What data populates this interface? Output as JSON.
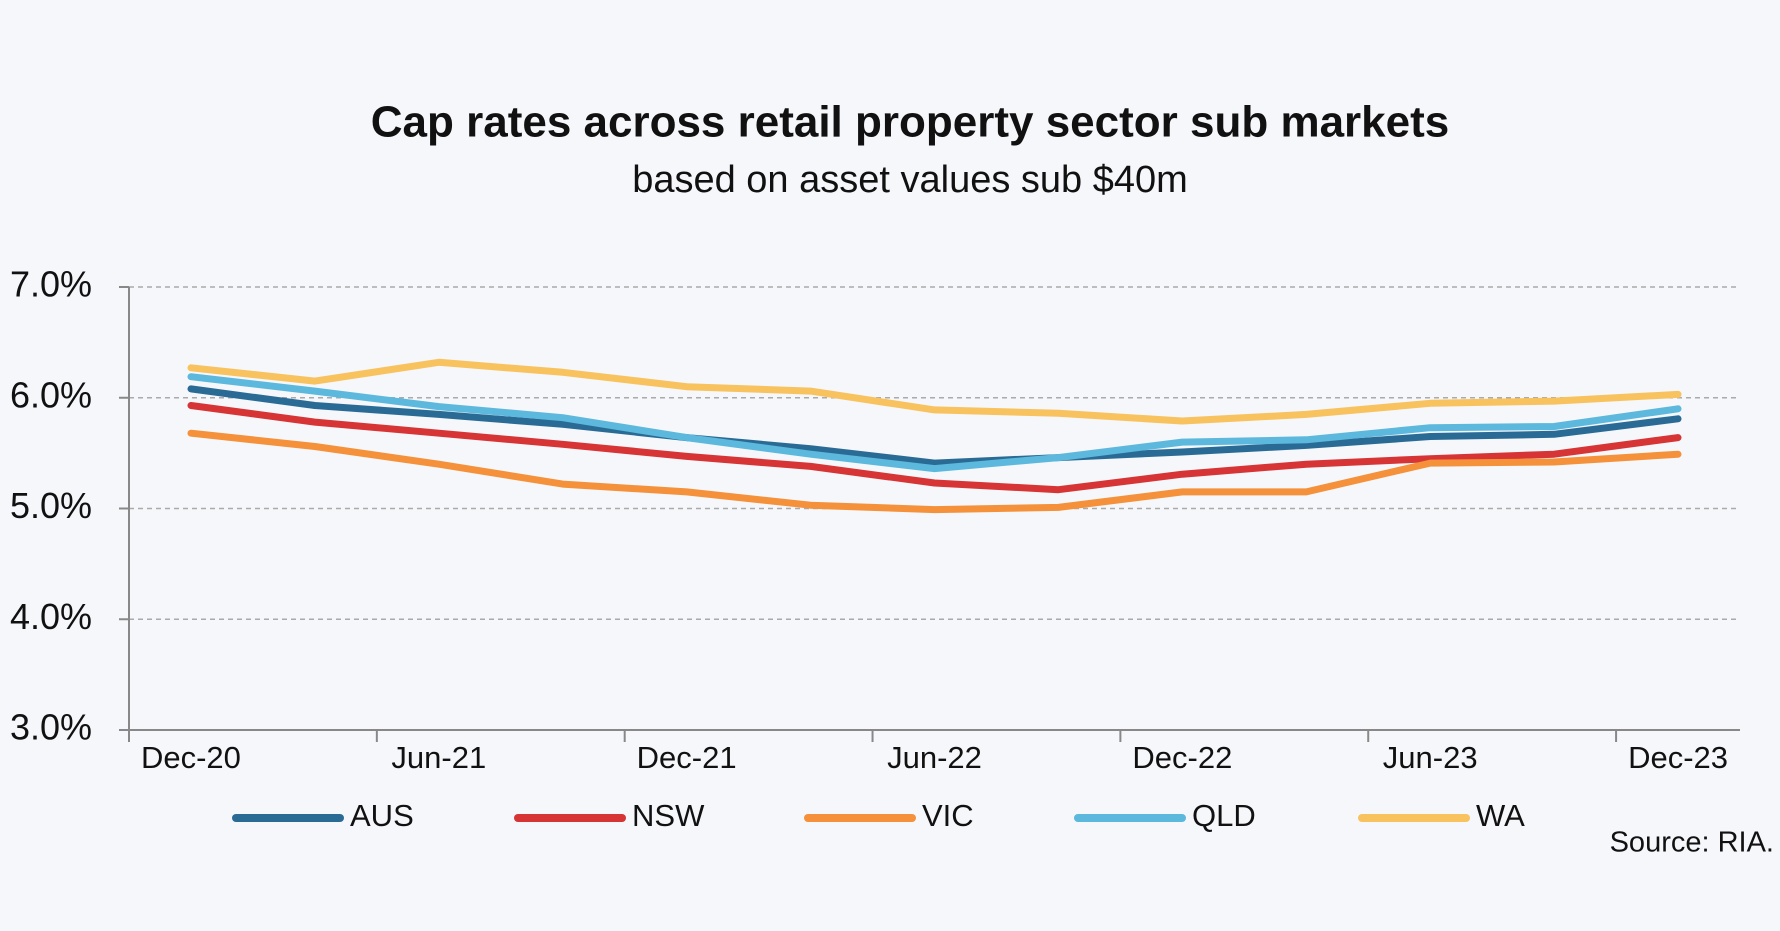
{
  "chart_data": {
    "type": "line",
    "title": "Cap rates across retail property sector sub markets",
    "subtitle": "based on asset values sub $40m",
    "source": "Source: RIA.",
    "categories": [
      "Dec-20",
      null,
      "Jun-21",
      null,
      "Dec-21",
      null,
      "Jun-22",
      null,
      "Dec-22",
      null,
      "Jun-23",
      null,
      "Dec-23"
    ],
    "ylim": [
      3,
      7
    ],
    "yticks": [
      {
        "value": 3,
        "label": "3.0%"
      },
      {
        "value": 4,
        "label": "4.0%"
      },
      {
        "value": 5,
        "label": "5.0%"
      },
      {
        "value": 6,
        "label": "6.0%"
      },
      {
        "value": 7,
        "label": "7.0%"
      }
    ],
    "grid": true,
    "legend": "bottom",
    "series": [
      {
        "name": "AUS",
        "color": "#2a6b96",
        "values": [
          6.08,
          5.93,
          5.85,
          5.76,
          5.64,
          5.54,
          5.41,
          5.46,
          5.51,
          5.57,
          5.65,
          5.67,
          5.81
        ]
      },
      {
        "name": "NSW",
        "color": "#d63435",
        "values": [
          5.93,
          5.78,
          5.68,
          5.58,
          5.47,
          5.38,
          5.23,
          5.17,
          5.31,
          5.4,
          5.45,
          5.49,
          5.64
        ]
      },
      {
        "name": "VIC",
        "color": "#f4913a",
        "values": [
          5.68,
          5.56,
          5.4,
          5.22,
          5.15,
          5.03,
          4.99,
          5.01,
          5.15,
          5.15,
          5.41,
          5.42,
          5.49
        ]
      },
      {
        "name": "QLD",
        "color": "#5cb8dc",
        "values": [
          6.19,
          6.06,
          5.92,
          5.82,
          5.64,
          5.49,
          5.36,
          5.46,
          5.6,
          5.62,
          5.73,
          5.74,
          5.9
        ]
      },
      {
        "name": "WA",
        "color": "#f8c25f",
        "values": [
          6.27,
          6.15,
          6.32,
          6.23,
          6.1,
          6.06,
          5.89,
          5.86,
          5.79,
          5.85,
          5.95,
          5.97,
          6.03
        ]
      }
    ]
  }
}
